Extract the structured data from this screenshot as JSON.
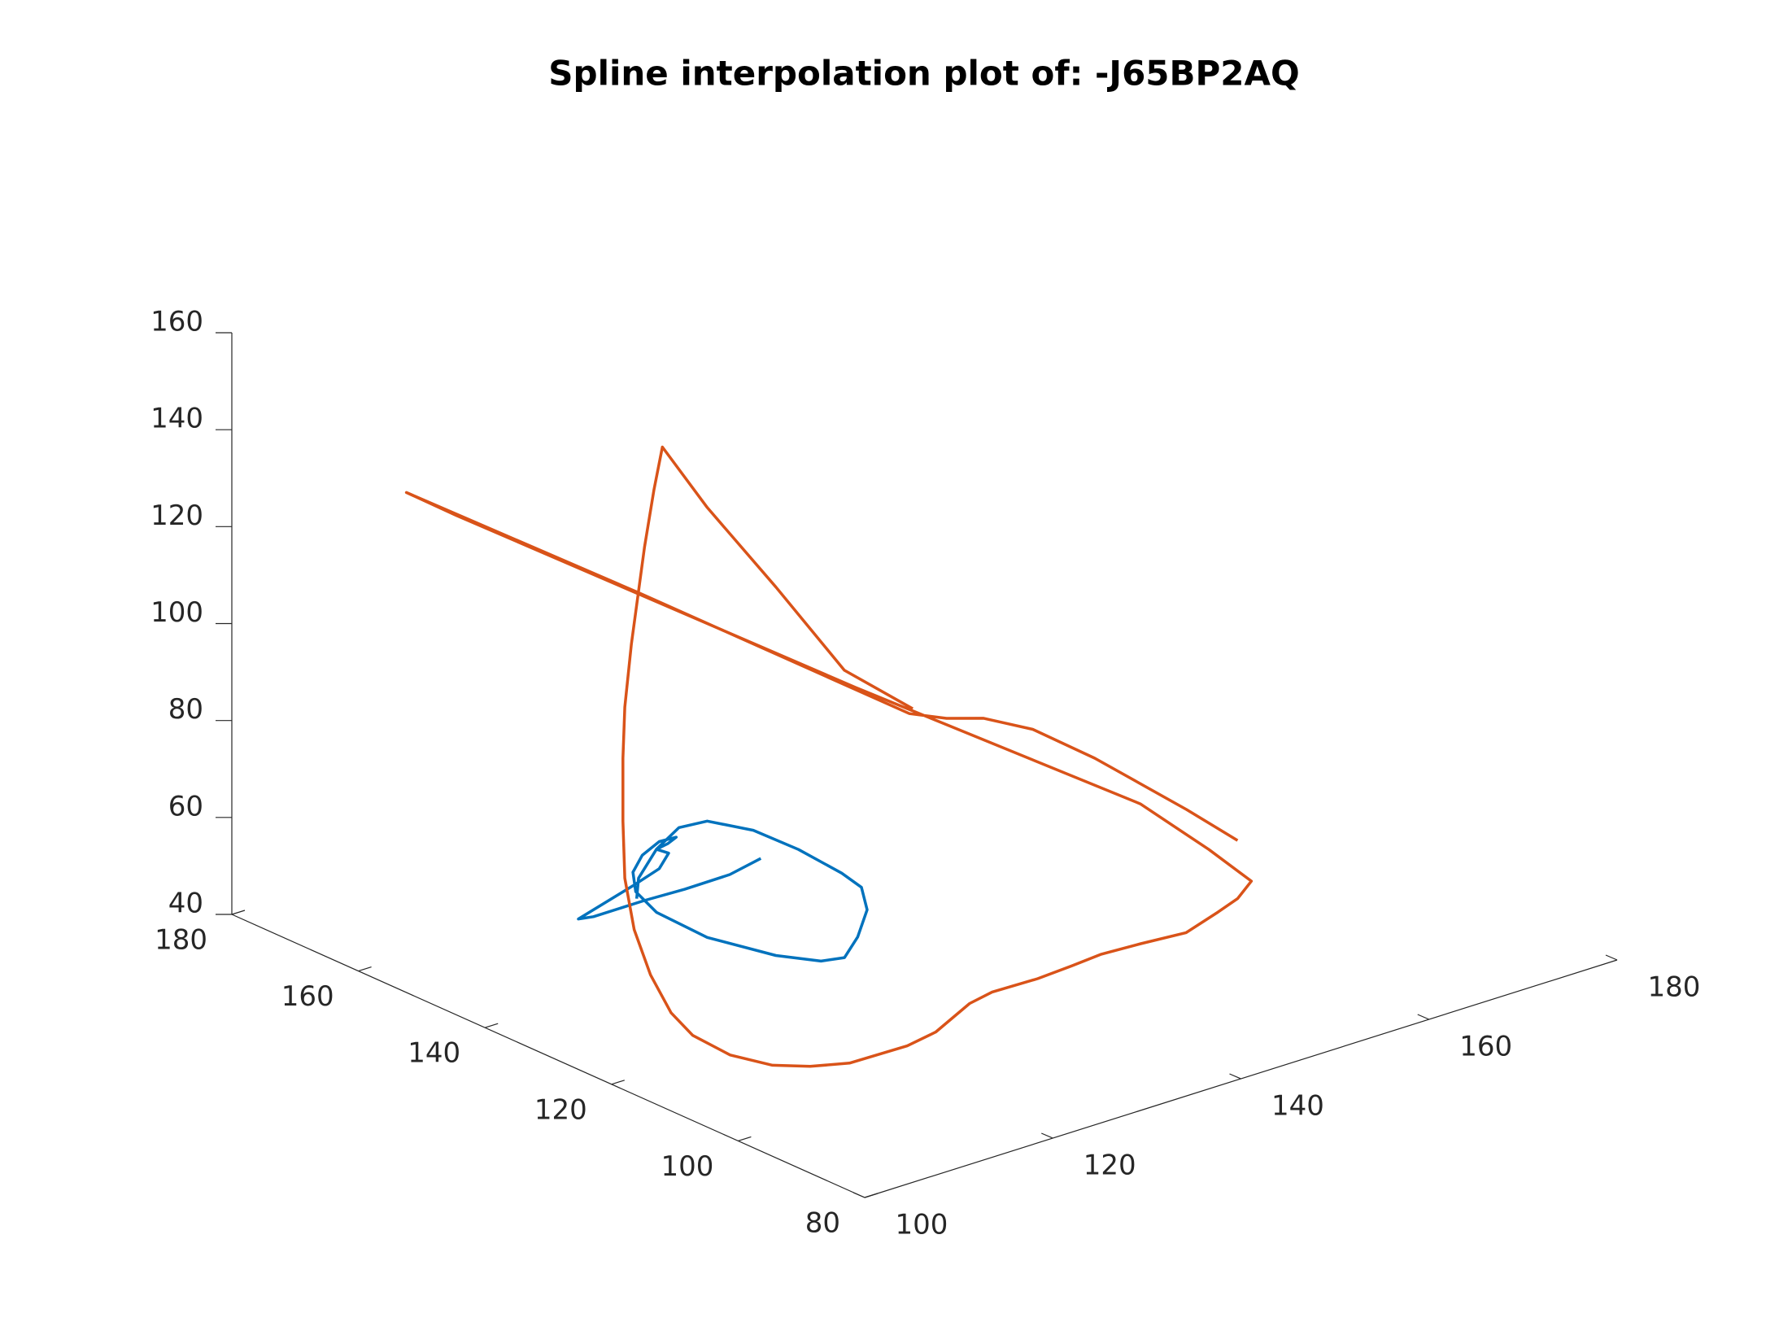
{
  "chart_data": {
    "type": "line3d",
    "title": "Spline interpolation plot of: -J65BP2AQ",
    "xlim": [
      100,
      180
    ],
    "ylim": [
      80,
      180
    ],
    "zlim": [
      40,
      160
    ],
    "xticks": [
      100,
      120,
      140,
      160,
      180
    ],
    "yticks": [
      80,
      100,
      120,
      140,
      160,
      180
    ],
    "zticks": [
      40,
      60,
      80,
      100,
      120,
      140,
      160
    ],
    "series": [
      {
        "color": "#0072BD",
        "x": [
          122.6,
          119.3,
          114.5,
          110.2,
          104.8,
          103.2,
          106.0,
          109.0,
          111.8,
          112.8,
          111.5,
          112.7,
          113.6,
          111.8,
          110.0,
          109.0,
          109.3,
          111.5,
          116.9,
          124.2,
          129.0,
          131.5,
          132.9,
          133.9,
          133.3,
          131.2,
          126.6,
          121.8,
          116.9,
          113.9,
          111.5,
          109.6,
          109.4
        ],
        "y": [
          130,
          130,
          130,
          130,
          130,
          130,
          130,
          130,
          130,
          130,
          130,
          130,
          130,
          130,
          130,
          130,
          130,
          130,
          130,
          130,
          130,
          130,
          130,
          130,
          130,
          130,
          130,
          130,
          130,
          130,
          130,
          130,
          130
        ],
        "z": [
          66.9,
          65.6,
          65.5,
          65.8,
          65.8,
          66.3,
          67.9,
          69.6,
          71.4,
          74.0,
          75.6,
          76.0,
          76.8,
          77.0,
          75.3,
          72.4,
          68.2,
          62.6,
          54.1,
          45.9,
          41.8,
          41.0,
          44.4,
          49.4,
          54.4,
          58.6,
          66.3,
          73.2,
          78.1,
          78.6,
          75.6,
          70.8,
          66.7
        ]
      },
      {
        "color": "#D95319",
        "x": [
          160.5,
          157.1,
          150.7,
          146.8,
          143.6,
          141.0,
          138.4,
          120.4,
          105.1,
          108.4,
          134.7,
          154.2,
          158.8,
          161.3,
          160.5,
          159.1,
          151.0,
          149.2,
          145.2,
          141.8,
          137.9,
          133.2,
          130.2,
          124.1,
          120.4,
          114.4,
          111.5,
          109.3,
          108.1,
          108.5,
          110.3,
          114.3,
          112.5,
          111.5,
          111.3,
          111.3,
          111.5,
          112.2,
          113.6,
          114.6,
          115.5,
          119.6,
          126.9,
          133.5,
          140.1
        ],
        "y": [
          111,
          114,
          119,
          123,
          126,
          128,
          130,
          146,
          160,
          157,
          133,
          117,
          113,
          110,
          111,
          112,
          105,
          109.5,
          109.9,
          109.4,
          109.0,
          109.2,
          108.3,
          104.6,
          103.6,
          103.8,
          105.7,
          108.4,
          113.3,
          119.8,
          125.9,
          135.1,
          135,
          135,
          135,
          135,
          135,
          135,
          135,
          135,
          135,
          134,
          134,
          133,
          132
        ],
        "z": [
          58.5,
          65.2,
          76.8,
          82.8,
          85.3,
          85.7,
          87.1,
          113.7,
          135.6,
          130.6,
          93.0,
          66.4,
          56.5,
          50.2,
          46.5,
          44.0,
          48.8,
          45,
          45,
          45,
          45,
          45,
          45,
          45,
          45,
          45,
          45,
          45,
          45,
          45,
          45,
          45,
          55.5,
          66.7,
          78.6,
          91.6,
          102.0,
          114.6,
          133.7,
          144.9,
          153.2,
          138.8,
          117.9,
          97.3,
          85.9
        ]
      }
    ]
  }
}
